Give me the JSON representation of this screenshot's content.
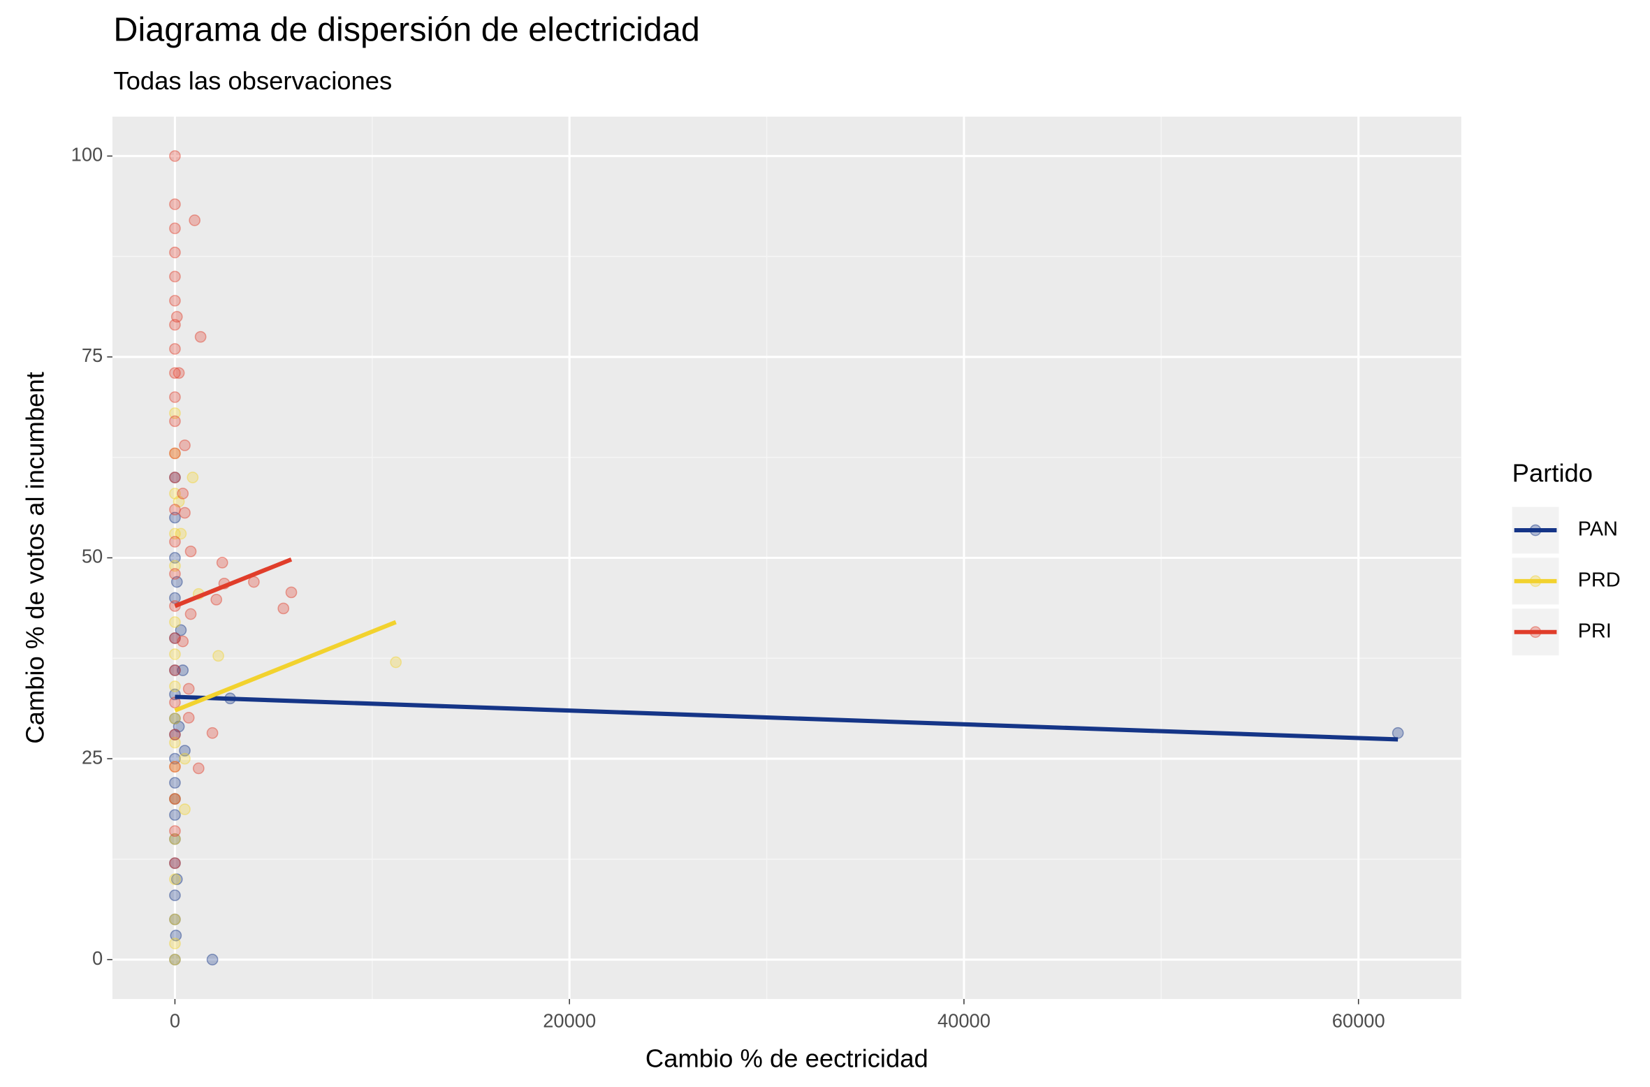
{
  "chart_data": {
    "type": "scatter",
    "title": "Diagrama de dispersión de electricidad",
    "subtitle": "Todas las observaciones",
    "x_label": "Cambio % de eectricidad",
    "y_label": "Cambio % de votos al incumbent",
    "legend_title": "Partido",
    "xlim": [
      -3170,
      65210
    ],
    "ylim": [
      -4.9,
      104.9
    ],
    "xticks": [
      0,
      20000,
      40000,
      60000
    ],
    "yticks": [
      0,
      25,
      50,
      75,
      100
    ],
    "grid": true,
    "legend_position": "right",
    "series": [
      {
        "name": "PAN",
        "color": "#153587",
        "x": [
          0,
          0,
          0,
          0,
          0,
          0,
          0,
          0,
          0,
          0,
          0,
          0,
          0,
          0,
          0,
          0,
          0,
          100,
          300,
          400,
          500,
          2800,
          1900,
          62000,
          200,
          0,
          100,
          50
        ],
        "values": [
          0,
          5,
          8,
          12,
          15,
          18,
          20,
          22,
          25,
          28,
          30,
          33,
          36,
          40,
          45,
          50,
          55,
          47,
          41,
          36,
          26,
          32.5,
          0,
          28.2,
          29,
          60,
          10,
          3
        ],
        "trend": {
          "x": [
            0,
            62000
          ],
          "values": [
            32.7,
            27.4
          ]
        }
      },
      {
        "name": "PRD",
        "color": "#f2d22e",
        "x": [
          0,
          0,
          0,
          0,
          0,
          0,
          0,
          0,
          0,
          0,
          0,
          0,
          0,
          0,
          0,
          0,
          0,
          900,
          11200,
          2200,
          1200,
          500,
          500,
          300,
          200
        ],
        "values": [
          0,
          2,
          5,
          10,
          15,
          20,
          24,
          27,
          30,
          34,
          38,
          42,
          49,
          53,
          58,
          63,
          68,
          60,
          37,
          37.8,
          45.5,
          25,
          18.7,
          53,
          57
        ],
        "trend": {
          "x": [
            0,
            11200
          ],
          "values": [
            31,
            42
          ]
        }
      },
      {
        "name": "PRI",
        "color": "#e03d2a",
        "x": [
          0,
          0,
          0,
          0,
          0,
          0,
          0,
          0,
          0,
          0,
          0,
          0,
          0,
          0,
          0,
          0,
          0,
          0,
          0,
          0,
          0,
          0,
          0,
          0,
          0,
          1000,
          1300,
          200,
          500,
          400,
          500,
          800,
          2400,
          2500,
          4000,
          5900,
          5500,
          2100,
          800,
          400,
          700,
          700,
          1900,
          1200,
          100
        ],
        "values": [
          100,
          94,
          91,
          88,
          85,
          82,
          79,
          76,
          73,
          70,
          67,
          63,
          60,
          56,
          52,
          48,
          44,
          40,
          36,
          32,
          28,
          24,
          20,
          16,
          12,
          92,
          77.5,
          73,
          64,
          58,
          55.6,
          50.8,
          49.4,
          46.8,
          47,
          45.7,
          43.7,
          44.8,
          43,
          39.6,
          33.7,
          30.1,
          28.2,
          23.8,
          80
        ],
        "trend": {
          "x": [
            0,
            5900
          ],
          "values": [
            44,
            49.8
          ]
        }
      }
    ]
  }
}
